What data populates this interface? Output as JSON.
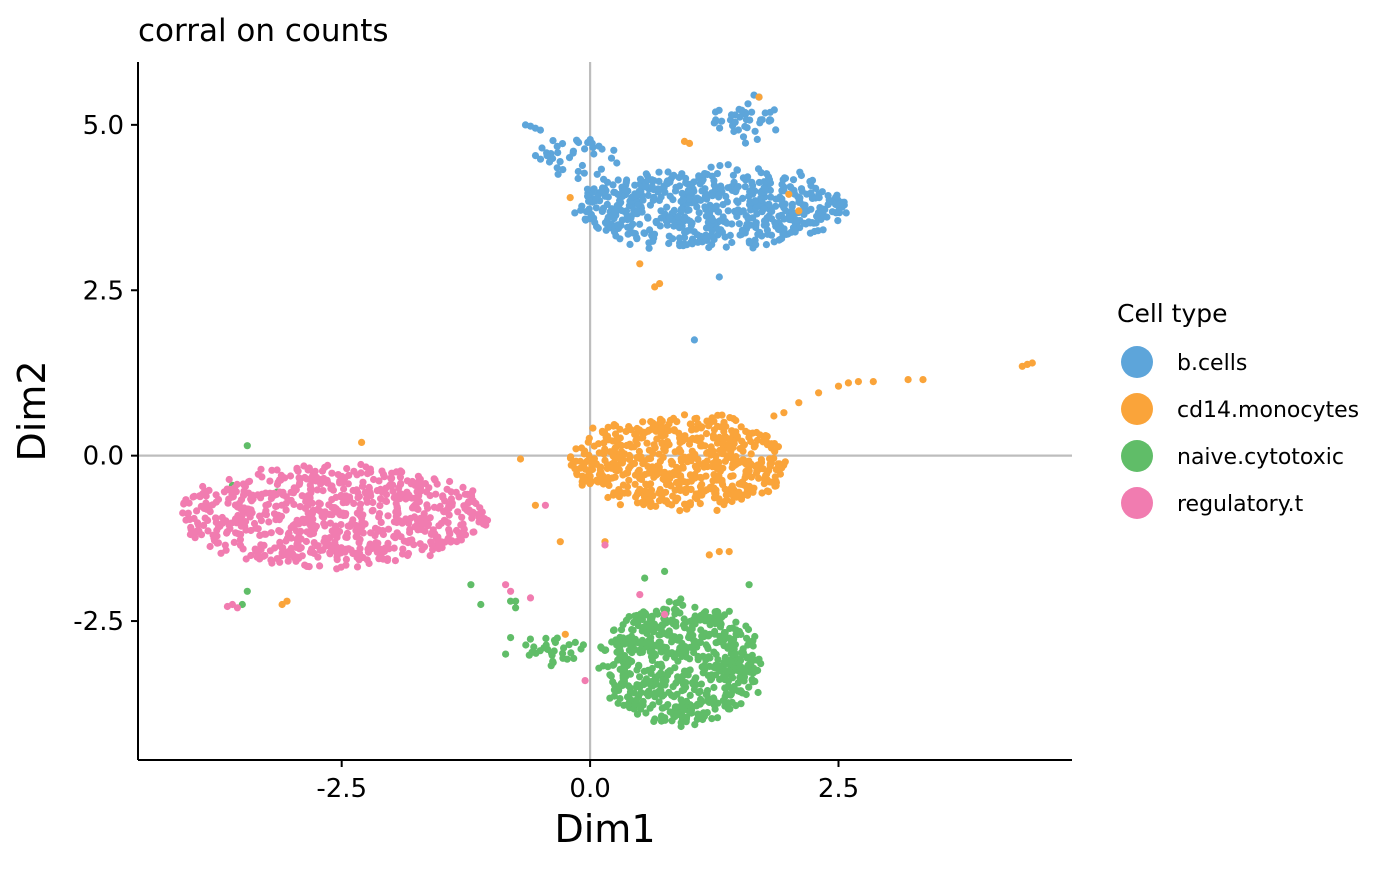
{
  "chart_data": {
    "type": "scatter",
    "title": "corral on counts",
    "xlabel": "Dim1",
    "ylabel": "Dim2",
    "xlim": [
      -4.55,
      4.85
    ],
    "ylim": [
      -4.6,
      5.95
    ],
    "x_ticks": [
      -2.5,
      0.0,
      2.5
    ],
    "x_tick_labels": [
      "-2.5",
      "0.0",
      "2.5"
    ],
    "y_ticks": [
      -2.5,
      0.0,
      2.5,
      5.0
    ],
    "y_tick_labels": [
      "-2.5",
      "0.0",
      "2.5",
      "5.0"
    ],
    "reference_lines": {
      "x": 0,
      "y": 0
    },
    "grid": false,
    "legend": {
      "title": "Cell type",
      "position": "right"
    },
    "series": [
      {
        "name": "b.cells",
        "color": "#5DA5DA",
        "clusters": [
          {
            "cx": 1.2,
            "cy": 3.75,
            "rx": 1.35,
            "ry": 0.6,
            "n": 620
          },
          {
            "cx": -0.15,
            "cy": 4.5,
            "rx": 0.45,
            "ry": 0.3,
            "n": 40
          },
          {
            "cx": 1.55,
            "cy": 5.05,
            "rx": 0.3,
            "ry": 0.3,
            "n": 40
          }
        ],
        "points": [
          [
            -0.65,
            5.0
          ],
          [
            -0.6,
            4.98
          ],
          [
            -0.55,
            4.95
          ],
          [
            -0.5,
            4.92
          ],
          [
            1.65,
            5.45
          ],
          [
            1.7,
            5.42
          ],
          [
            1.05,
            1.75
          ],
          [
            1.3,
            2.7
          ]
        ]
      },
      {
        "name": "cd14.monocytes",
        "color": "#FAA43A",
        "clusters": [
          {
            "cx": 0.9,
            "cy": -0.1,
            "rx": 1.1,
            "ry": 0.7,
            "n": 620
          }
        ],
        "points": [
          [
            2.1,
            0.8
          ],
          [
            2.3,
            0.95
          ],
          [
            2.5,
            1.05
          ],
          [
            2.6,
            1.1
          ],
          [
            2.7,
            1.12
          ],
          [
            2.85,
            1.12
          ],
          [
            3.2,
            1.15
          ],
          [
            3.35,
            1.15
          ],
          [
            4.35,
            1.35
          ],
          [
            4.4,
            1.38
          ],
          [
            4.45,
            1.4
          ],
          [
            1.95,
            0.65
          ],
          [
            1.85,
            0.6
          ],
          [
            -0.55,
            -0.75
          ],
          [
            -0.7,
            -0.05
          ],
          [
            -0.3,
            -1.3
          ],
          [
            0.15,
            -1.3
          ],
          [
            1.3,
            -1.45
          ],
          [
            1.4,
            -1.45
          ],
          [
            -2.3,
            0.2
          ],
          [
            -3.05,
            -2.2
          ],
          [
            -3.1,
            -2.25
          ],
          [
            0.65,
            2.55
          ],
          [
            0.7,
            2.6
          ],
          [
            0.95,
            4.75
          ],
          [
            1.0,
            4.72
          ],
          [
            1.7,
            5.42
          ],
          [
            2.1,
            3.7
          ],
          [
            2.0,
            3.95
          ],
          [
            -0.2,
            3.9
          ],
          [
            0.5,
            2.9
          ],
          [
            -0.25,
            -2.7
          ],
          [
            1.2,
            -1.5
          ]
        ]
      },
      {
        "name": "naive.cytotoxic",
        "color": "#60BD68",
        "clusters": [
          {
            "cx": 0.9,
            "cy": -3.15,
            "rx": 0.8,
            "ry": 0.9,
            "n": 620
          },
          {
            "cx": -0.35,
            "cy": -3.0,
            "rx": 0.35,
            "ry": 0.25,
            "n": 30
          }
        ],
        "points": [
          [
            -1.2,
            -1.95
          ],
          [
            -1.1,
            -2.25
          ],
          [
            -0.8,
            -2.2
          ],
          [
            -0.75,
            -2.2
          ],
          [
            -0.75,
            -2.3
          ],
          [
            -0.8,
            -2.75
          ],
          [
            -0.85,
            -3.0
          ],
          [
            -3.45,
            0.15
          ],
          [
            -3.6,
            -0.45
          ],
          [
            -3.45,
            -2.05
          ],
          [
            -3.5,
            -2.25
          ],
          [
            -3.15,
            -0.55
          ],
          [
            -2.8,
            -1.15
          ],
          [
            0.55,
            -1.85
          ],
          [
            0.75,
            -1.75
          ],
          [
            1.6,
            -1.95
          ]
        ]
      },
      {
        "name": "regulatory.t",
        "color": "#F17CB0",
        "clusters": [
          {
            "cx": -2.6,
            "cy": -0.9,
            "rx": 1.55,
            "ry": 0.75,
            "n": 750
          }
        ],
        "points": [
          [
            -1.05,
            -1.05
          ],
          [
            -0.85,
            -1.95
          ],
          [
            -0.8,
            -2.05
          ],
          [
            -0.6,
            -2.15
          ],
          [
            -0.45,
            -0.75
          ],
          [
            0.15,
            -1.35
          ],
          [
            0.5,
            -2.1
          ],
          [
            0.75,
            -2.4
          ],
          [
            -0.05,
            -3.4
          ],
          [
            -3.6,
            -2.25
          ],
          [
            -3.65,
            -2.28
          ],
          [
            -3.55,
            -2.3
          ]
        ]
      }
    ]
  }
}
